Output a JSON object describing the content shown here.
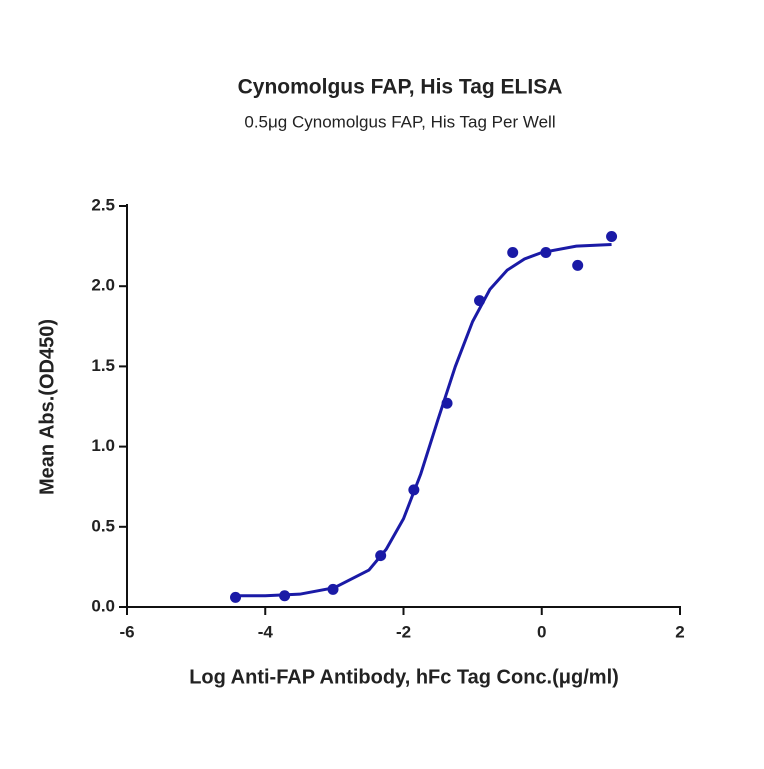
{
  "chart_data": {
    "type": "scatter",
    "title": "Cynomolgus FAP, His Tag ELISA",
    "subtitle": "0.5μg Cynomolgus FAP, His Tag Per Well",
    "xlabel": "Log Anti-FAP Antibody, hFc Tag Conc.(μg/ml)",
    "ylabel": "Mean Abs.(OD450)",
    "xlim": [
      -6,
      2
    ],
    "xticks": [
      -6,
      -4,
      -2,
      0,
      2
    ],
    "ylim": [
      0,
      2.5
    ],
    "yticks": [
      {
        "value": 0,
        "label": "0.0"
      },
      {
        "value": 0.5,
        "label": "0.5"
      },
      {
        "value": 1,
        "label": "1.0"
      },
      {
        "value": 1.5,
        "label": "1.5"
      },
      {
        "value": 2,
        "label": "2.0"
      },
      {
        "value": 2.5,
        "label": "2.5"
      }
    ],
    "series": [
      {
        "type": "scatter",
        "color": "#1a1aa6",
        "x": [
          -4.43,
          -3.72,
          -3.02,
          -2.33,
          -1.85,
          -1.37,
          -0.9,
          -0.42,
          0.06,
          0.52,
          1.01
        ],
        "values": [
          0.06,
          0.07,
          0.11,
          0.32,
          0.73,
          1.27,
          1.91,
          2.21,
          2.21,
          2.13,
          2.31
        ]
      },
      {
        "type": "line",
        "color": "#1a1aa6",
        "x": [
          -4.43,
          -4,
          -3.5,
          -3,
          -2.5,
          -2.25,
          -2,
          -1.75,
          -1.5,
          -1.25,
          -1,
          -0.75,
          -0.5,
          -0.25,
          0,
          0.5,
          1.01
        ],
        "values": [
          0.07,
          0.07,
          0.08,
          0.12,
          0.23,
          0.36,
          0.55,
          0.83,
          1.17,
          1.5,
          1.78,
          1.98,
          2.1,
          2.17,
          2.21,
          2.25,
          2.26
        ]
      }
    ]
  }
}
